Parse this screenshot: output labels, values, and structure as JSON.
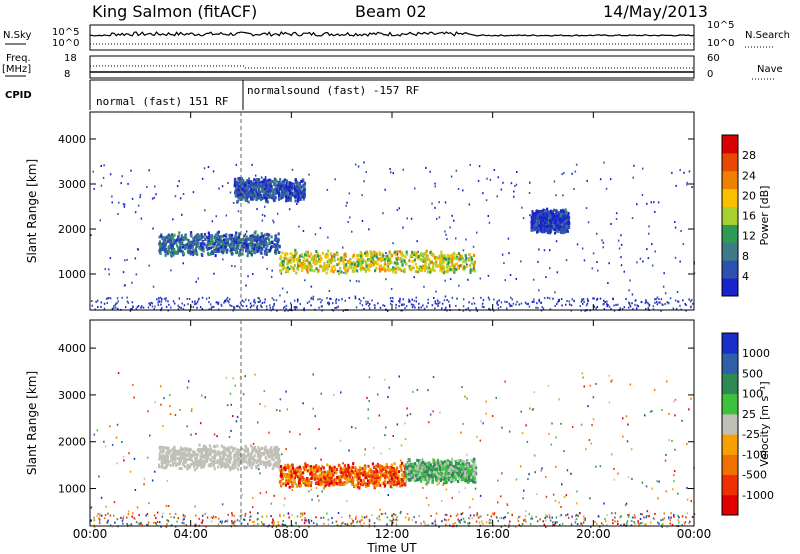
{
  "header": {
    "station": "King Salmon (fitACF)",
    "beam": "Beam 02",
    "date": "14/May/2013"
  },
  "strips": {
    "nsky_label": "N.Sky",
    "nsearch_label": "N.Search",
    "freq_label_1": "Freq.",
    "freq_label_2": "[MHz]",
    "nave_label": "Nave",
    "cpid_label": "CPID",
    "left_ticks_noise": [
      "10^5",
      "10^0"
    ],
    "right_ticks_noise": [
      "10^5",
      "10^0"
    ],
    "left_ticks_freq": [
      "18",
      "8"
    ],
    "right_ticks_freq": [
      "60",
      "0"
    ],
    "cpid_segments": [
      "normal (fast) 151 RF",
      "normalsound (fast) -157 RF"
    ]
  },
  "chart_data": [
    {
      "type": "heatmap",
      "title": "",
      "xlabel": "",
      "ylabel": "Slant Range [km]",
      "x_ticks": [
        "00:00",
        "04:00",
        "08:00",
        "12:00",
        "16:00",
        "20:00",
        "00:00"
      ],
      "y_ticks": [
        "1000",
        "2000",
        "3000",
        "4000"
      ],
      "ylim": [
        200,
        4600
      ],
      "colorbar_label": "Power [dB]",
      "colorbar_ticks": [
        "4",
        "8",
        "12",
        "16",
        "20",
        "24",
        "28"
      ],
      "colors": [
        "#1a22cc",
        "#2f4fb0",
        "#3d7a8a",
        "#2e9a55",
        "#a8d030",
        "#f7c100",
        "#f08000",
        "#e84800",
        "#d80000"
      ],
      "regions": [
        {
          "name": "scatter band 1700 km",
          "t_start": 2.7,
          "t_end": 7.5,
          "range_km": 1700,
          "level_db": 10
        },
        {
          "name": "main echo 08-15 UT",
          "t_start": 7.5,
          "t_end": 15.3,
          "range_km": 1300,
          "level_db": 22
        },
        {
          "name": "upper patch 3000 km",
          "t_start": 5.7,
          "t_end": 8.5,
          "range_km": 2900,
          "level_db": 8
        },
        {
          "name": "patch 18 UT",
          "t_start": 17.5,
          "t_end": 19.0,
          "range_km": 2200,
          "level_db": 6
        }
      ]
    },
    {
      "type": "heatmap",
      "title": "",
      "xlabel": "Time UT",
      "ylabel": "Slant Range [km]",
      "x_ticks": [
        "00:00",
        "04:00",
        "08:00",
        "12:00",
        "16:00",
        "20:00",
        "00:00"
      ],
      "y_ticks": [
        "1000",
        "2000",
        "3000",
        "4000"
      ],
      "ylim": [
        200,
        4600
      ],
      "colorbar_label": "Velocity [m s⁻¹]",
      "colorbar_ticks": [
        "1000",
        "500",
        "100",
        "25",
        "-25",
        "-100",
        "-500",
        "-1000"
      ],
      "colors": [
        "#1830c8",
        "#2f5fa8",
        "#2e8a55",
        "#3cc23c",
        "#c0c0b8",
        "#f7a000",
        "#f07000",
        "#f03000",
        "#e00000"
      ],
      "regions": [
        {
          "name": "ground scatter band",
          "t_start": 2.7,
          "t_end": 7.5,
          "range_km": 1700,
          "velocity": 0
        },
        {
          "name": "main echo",
          "t_start": 7.5,
          "t_end": 12.5,
          "range_km": 1300,
          "velocity": -400
        },
        {
          "name": "main echo tail",
          "t_start": 12.5,
          "t_end": 15.3,
          "range_km": 1400,
          "velocity": 150
        }
      ]
    }
  ]
}
